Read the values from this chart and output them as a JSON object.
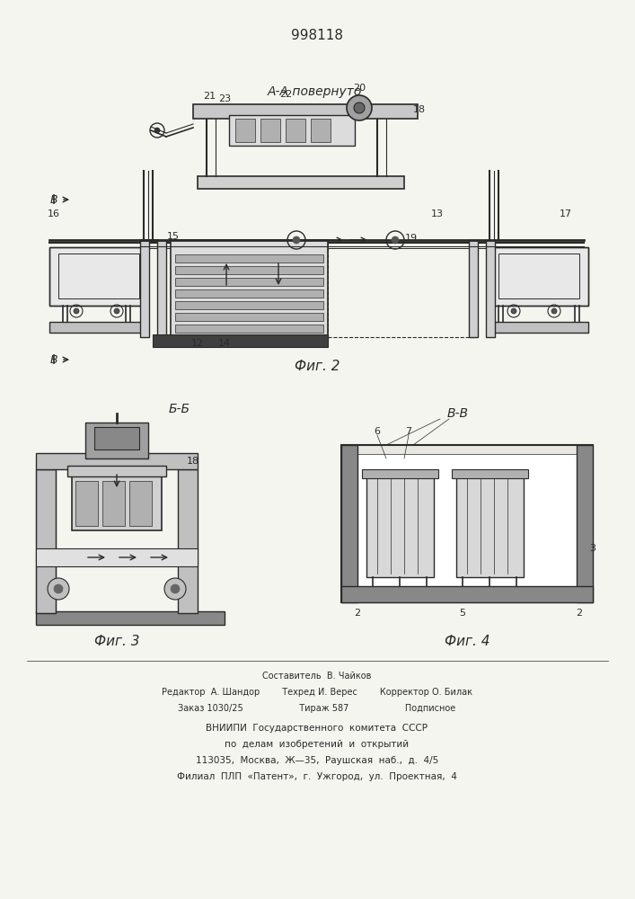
{
  "patent_number": "998118",
  "background_color": "#f5f5f0",
  "line_color": "#2a2a2a",
  "fig2_label": "Фиг. 2",
  "fig3_label": "Фиг. 3",
  "fig4_label": "Фиг. 4",
  "aa_label": "А-А повернуто",
  "bb_label": "Б-Б",
  "vv_label": "В-В",
  "footer_line1": "Составитель  В. Чайков",
  "footer_line2": "Редактор  А. Шандор        Техред И. Верес        Корректор О. Билак",
  "footer_line3": "Заказ 1030/25                    Тираж 587                    Подписное",
  "footer_line4": "ВНИИПИ  Государственного  комитета  СССР",
  "footer_line5": "по  делам  изобретений  и  открытий",
  "footer_line6": "113035,  Москва,  Ж—35,  Раушская  наб.,  д.  4/5",
  "footer_line7": "Филиал  ПЛП  «Патент»,  г.  Ужгород,  ул.  Проектная,  4"
}
